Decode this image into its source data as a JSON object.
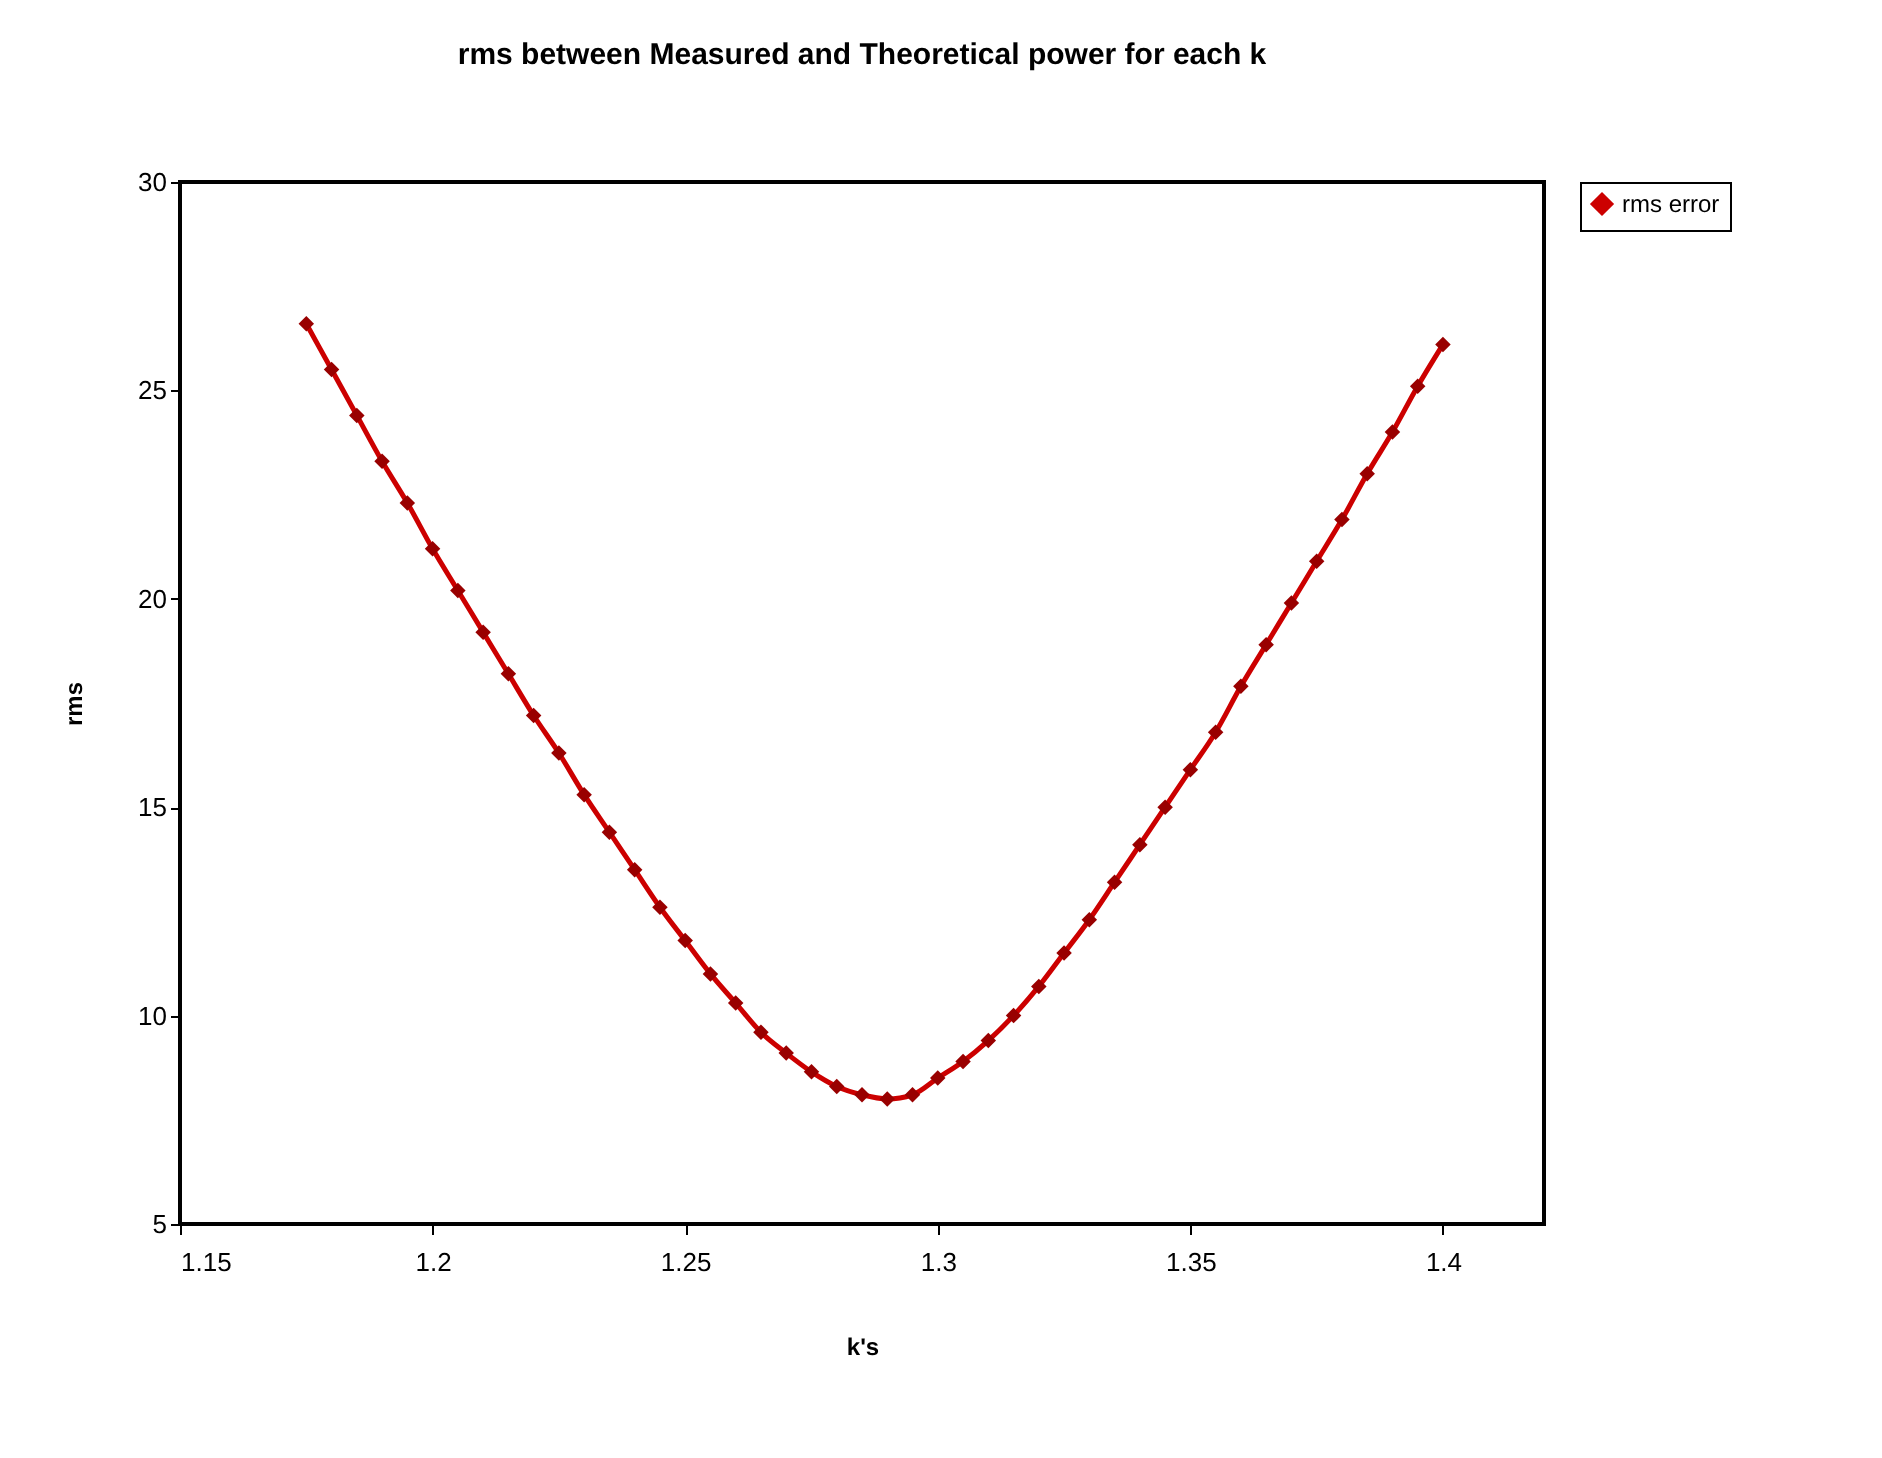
{
  "chart_data": {
    "type": "line",
    "title": "rms between Measured and Theoretical power for each k",
    "xlabel": "k's",
    "ylabel": "rms",
    "x": [
      1.175,
      1.18,
      1.185,
      1.19,
      1.195,
      1.2,
      1.205,
      1.21,
      1.215,
      1.22,
      1.225,
      1.23,
      1.235,
      1.24,
      1.245,
      1.25,
      1.255,
      1.26,
      1.265,
      1.27,
      1.275,
      1.28,
      1.285,
      1.29,
      1.295,
      1.3,
      1.305,
      1.31,
      1.315,
      1.32,
      1.325,
      1.33,
      1.335,
      1.34,
      1.345,
      1.35,
      1.355,
      1.36,
      1.365,
      1.37,
      1.375,
      1.38,
      1.385,
      1.39,
      1.395,
      1.4
    ],
    "series": [
      {
        "name": "rms error",
        "color": "#cc0000",
        "values": [
          26.6,
          25.5,
          24.4,
          23.3,
          22.3,
          21.2,
          20.2,
          19.2,
          18.2,
          17.2,
          16.3,
          15.3,
          14.4,
          13.5,
          12.6,
          11.8,
          11.0,
          10.3,
          9.6,
          9.1,
          8.65,
          8.3,
          8.1,
          8.0,
          8.1,
          8.5,
          8.9,
          9.4,
          10.0,
          10.7,
          11.5,
          12.3,
          13.2,
          14.1,
          15.0,
          15.9,
          16.8,
          17.9,
          18.9,
          19.9,
          20.9,
          21.9,
          23.0,
          24.0,
          25.1,
          26.1
        ]
      }
    ],
    "xlim": [
      1.15,
      1.42
    ],
    "xticks": [
      1.15,
      1.2,
      1.25,
      1.3,
      1.35,
      1.4
    ],
    "ylim": [
      5,
      30
    ],
    "yticks": [
      5,
      10,
      15,
      20,
      25,
      30
    ],
    "grid": false,
    "legend": "right",
    "marker": "diamond",
    "line_style": "solid"
  }
}
